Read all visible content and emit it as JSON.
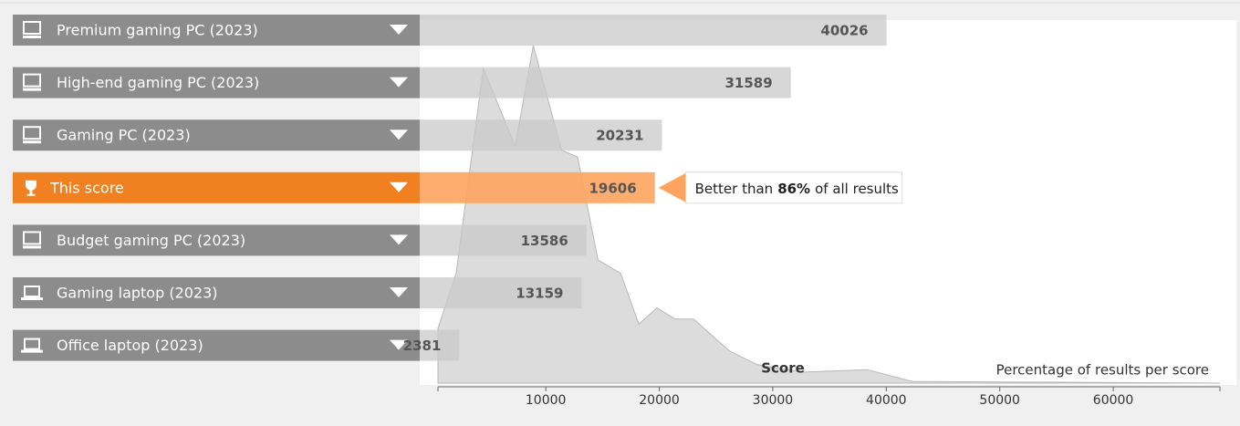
{
  "chart_data": {
    "type": "bar",
    "orientation": "horizontal",
    "categories": [
      "Premium gaming PC (2023)",
      "High-end gaming PC (2023)",
      "Gaming PC (2023)",
      "This score",
      "Budget gaming PC (2023)",
      "Gaming laptop (2023)",
      "Office laptop (2023)"
    ],
    "values": [
      40026,
      31589,
      20231,
      19606,
      13586,
      13159,
      2381
    ],
    "highlight_index": 3,
    "color": "#c9c9c9",
    "highlight_color": "#ffa45e",
    "label_color": "#8c8c8c",
    "highlight_label_color": "#f08020",
    "icons": [
      "desktop",
      "desktop",
      "desktop",
      "trophy",
      "desktop",
      "laptop",
      "laptop"
    ],
    "callout": {
      "prefix": "Better than",
      "value": 86,
      "value_label": "86%",
      "suffix": "of all results"
    },
    "xlabel": "Score",
    "y_label": "Percentage of results per score",
    "xlim": [
      500,
      69400
    ],
    "xticks": [
      10000,
      20000,
      30000,
      40000,
      50000,
      60000
    ],
    "distribution": {
      "color": "#dcdcdc",
      "ylim": [
        0,
        40
      ],
      "x": [
        500,
        2100,
        4500,
        7300,
        8900,
        11400,
        12800,
        14600,
        16600,
        18200,
        19800,
        21400,
        23000,
        26200,
        28600,
        32600,
        38300,
        42300,
        69400
      ],
      "values": [
        6.5,
        13,
        37.3,
        28.1,
        40,
        27.6,
        26.8,
        14.6,
        13,
        7,
        8.9,
        7.6,
        7.6,
        3.8,
        2.2,
        1.3,
        1.6,
        0.2,
        0
      ]
    }
  }
}
